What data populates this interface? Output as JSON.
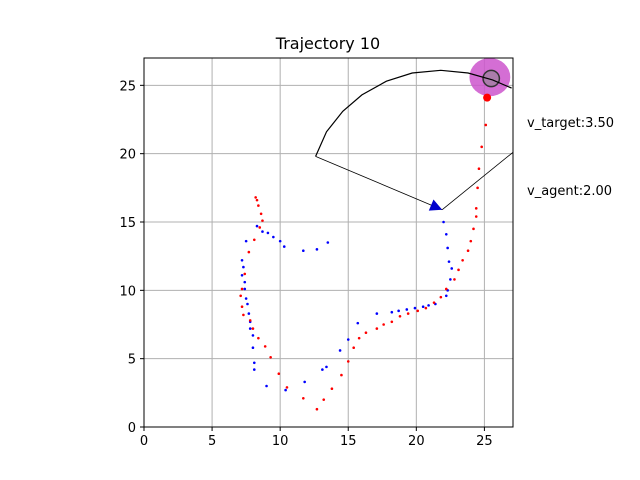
{
  "chart_data": {
    "type": "scatter",
    "title": "Trajectory 10",
    "xlabel": "",
    "ylabel": "",
    "xlim": [
      0,
      27.1
    ],
    "ylim": [
      0,
      27
    ],
    "xticks": [
      0,
      5,
      10,
      15,
      20,
      25
    ],
    "yticks": [
      0,
      5,
      10,
      15,
      20,
      25
    ],
    "grid": true,
    "annotations": {
      "v_target": "v_target:3.50",
      "v_agent": "v_agent:2.00"
    },
    "colors": {
      "agent_series": "#0000ff",
      "target_series": "#ff0000",
      "target_region": "#cc55cc",
      "target_inner": "#888888",
      "arrow": "#0000cc",
      "fov": "#000000",
      "grid": "#b0b0b0"
    },
    "series": [
      {
        "color": "#0000ff",
        "marker": "dot",
        "points": [
          [
            13.5,
            13.5
          ],
          [
            12.7,
            13.0
          ],
          [
            11.7,
            12.9
          ],
          [
            10.3,
            13.2
          ],
          [
            10.0,
            13.6
          ],
          [
            9.5,
            13.9
          ],
          [
            9.1,
            14.2
          ],
          [
            8.7,
            14.3
          ],
          [
            8.3,
            14.7
          ],
          [
            7.5,
            13.6
          ],
          [
            7.2,
            12.2
          ],
          [
            7.3,
            11.7
          ],
          [
            7.2,
            11.1
          ],
          [
            7.4,
            10.6
          ],
          [
            7.4,
            10.1
          ],
          [
            7.5,
            9.4
          ],
          [
            7.6,
            9.0
          ],
          [
            7.7,
            8.3
          ],
          [
            7.8,
            7.7
          ],
          [
            7.8,
            7.2
          ],
          [
            8.0,
            6.7
          ],
          [
            8.0,
            5.8
          ],
          [
            8.1,
            4.7
          ],
          [
            8.1,
            4.2
          ],
          [
            9.0,
            3.0
          ],
          [
            10.4,
            2.7
          ],
          [
            11.8,
            3.3
          ],
          [
            13.1,
            4.2
          ],
          [
            13.4,
            4.4
          ],
          [
            14.4,
            5.6
          ],
          [
            15.0,
            6.4
          ],
          [
            15.7,
            7.6
          ],
          [
            17.1,
            8.3
          ],
          [
            18.2,
            8.4
          ],
          [
            18.7,
            8.5
          ],
          [
            19.3,
            8.6
          ],
          [
            19.9,
            8.7
          ],
          [
            20.5,
            8.8
          ],
          [
            20.9,
            8.9
          ],
          [
            21.4,
            9.0
          ],
          [
            22.2,
            9.6
          ],
          [
            22.3,
            10.0
          ],
          [
            22.5,
            10.8
          ],
          [
            22.6,
            11.6
          ],
          [
            22.4,
            12.1
          ],
          [
            22.3,
            13.1
          ],
          [
            22.2,
            14.1
          ],
          [
            22.0,
            15.0
          ],
          [
            25.3,
            24.2
          ]
        ]
      },
      {
        "color": "#ff0000",
        "marker": "dot",
        "points": [
          [
            8.2,
            16.8
          ],
          [
            8.3,
            16.6
          ],
          [
            8.4,
            16.2
          ],
          [
            8.6,
            15.6
          ],
          [
            8.7,
            15.1
          ],
          [
            8.5,
            14.6
          ],
          [
            8.1,
            13.7
          ],
          [
            7.7,
            12.8
          ],
          [
            7.4,
            11.2
          ],
          [
            7.2,
            10.1
          ],
          [
            7.1,
            9.6
          ],
          [
            7.2,
            8.8
          ],
          [
            7.3,
            8.2
          ],
          [
            7.8,
            7.8
          ],
          [
            8.0,
            7.2
          ],
          [
            8.4,
            6.5
          ],
          [
            8.9,
            5.9
          ],
          [
            9.3,
            5.1
          ],
          [
            9.9,
            3.9
          ],
          [
            10.5,
            2.9
          ],
          [
            11.7,
            2.1
          ],
          [
            12.7,
            1.3
          ],
          [
            13.2,
            2.0
          ],
          [
            13.8,
            2.8
          ],
          [
            14.5,
            3.8
          ],
          [
            15.0,
            4.8
          ],
          [
            15.4,
            5.8
          ],
          [
            15.8,
            6.5
          ],
          [
            16.3,
            6.9
          ],
          [
            17.1,
            7.2
          ],
          [
            17.6,
            7.5
          ],
          [
            18.2,
            7.7
          ],
          [
            18.8,
            8.1
          ],
          [
            19.4,
            8.3
          ],
          [
            20.1,
            8.5
          ],
          [
            20.7,
            8.7
          ],
          [
            21.3,
            9.1
          ],
          [
            21.8,
            9.5
          ],
          [
            22.2,
            10.1
          ],
          [
            22.8,
            10.8
          ],
          [
            23.1,
            11.5
          ],
          [
            23.4,
            12.2
          ],
          [
            23.8,
            12.9
          ],
          [
            24.0,
            13.6
          ],
          [
            24.2,
            14.5
          ],
          [
            24.4,
            15.4
          ],
          [
            24.4,
            16.0
          ],
          [
            24.5,
            17.5
          ],
          [
            24.6,
            18.9
          ],
          [
            24.8,
            20.5
          ],
          [
            25.1,
            22.1
          ],
          [
            25.2,
            24.1
          ]
        ]
      }
    ],
    "target": {
      "marker": [
        25.2,
        24.1
      ],
      "region_center": [
        25.4,
        25.6
      ],
      "region_radius": [
        1.5,
        1.4
      ],
      "inner_center": [
        25.5,
        25.5
      ],
      "inner_radius": 0.6
    },
    "fov": {
      "apex": [
        12.6,
        19.8
      ],
      "arc_points": [
        [
          12.6,
          19.8
        ],
        [
          13.4,
          21.6
        ],
        [
          14.6,
          23.1
        ],
        [
          16.0,
          24.3
        ],
        [
          17.8,
          25.3
        ],
        [
          19.7,
          25.9
        ],
        [
          21.8,
          26.1
        ],
        [
          23.8,
          25.9
        ],
        [
          25.6,
          25.4
        ],
        [
          27.0,
          24.8
        ]
      ],
      "right_edge_point": [
        27.1,
        20.1
      ]
    },
    "arrow": {
      "from": [
        12.6,
        19.8
      ],
      "to": [
        21.9,
        15.9
      ]
    }
  }
}
